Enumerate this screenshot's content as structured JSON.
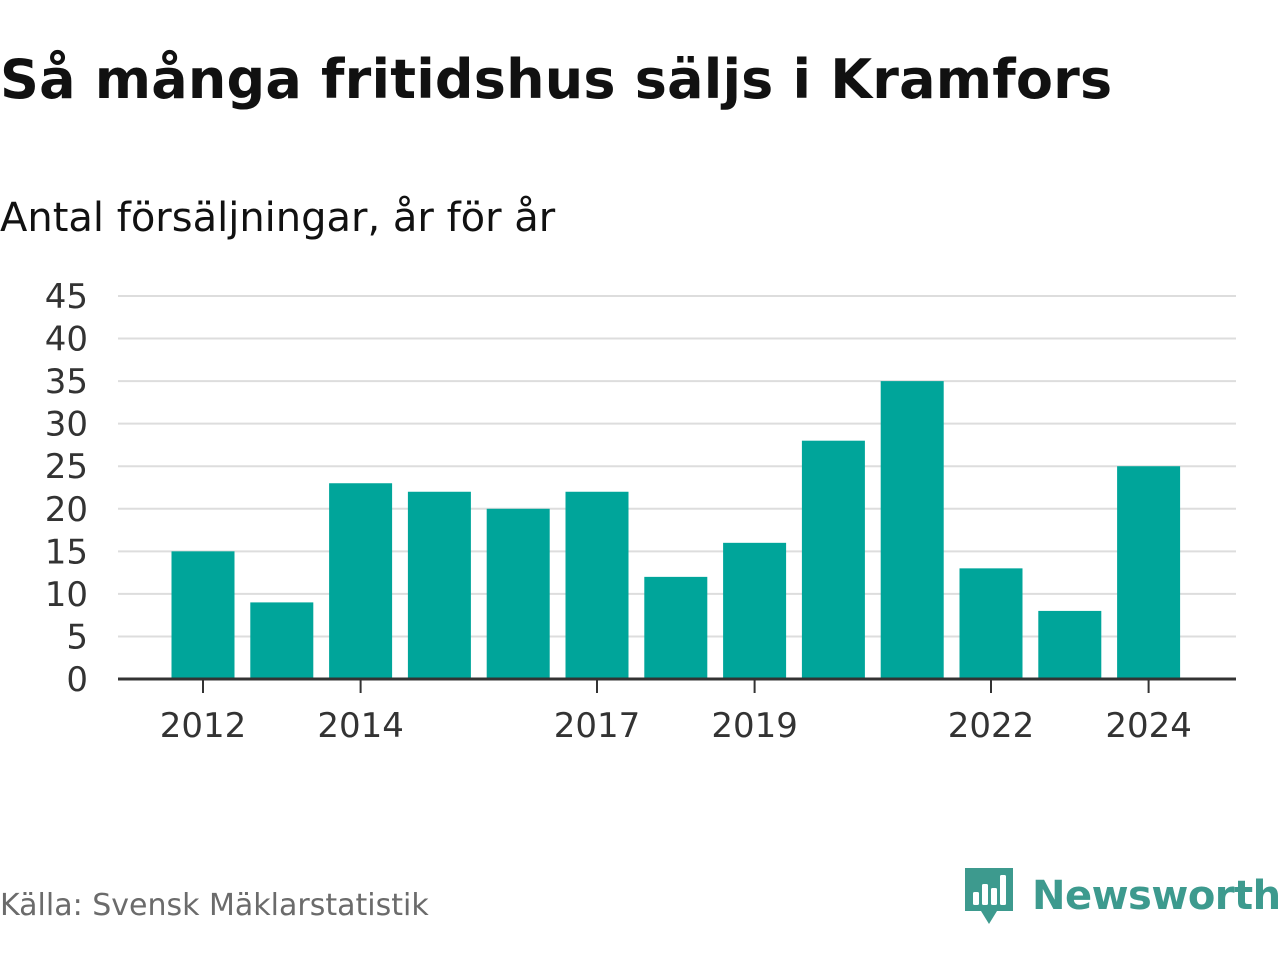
{
  "chart_data": {
    "type": "bar",
    "title": "Så många fritidshus säljs i Kramfors",
    "subtitle": "Antal försäljningar, år för år",
    "categories": [
      "2012",
      "2013",
      "2014",
      "2015",
      "2016",
      "2017",
      "2018",
      "2019",
      "2020",
      "2021",
      "2022",
      "2023",
      "2024"
    ],
    "values": [
      15,
      9,
      23,
      22,
      20,
      22,
      12,
      16,
      28,
      35,
      13,
      8,
      25
    ],
    "x_tick_labels": [
      "2012",
      "2014",
      "2017",
      "2019",
      "2022",
      "2024"
    ],
    "y_ticks": [
      "0",
      "5",
      "10",
      "15",
      "20",
      "25",
      "30",
      "35",
      "40",
      "45"
    ],
    "ylim": [
      0,
      45
    ],
    "xlabel": "",
    "ylabel": "",
    "grid": true,
    "legend": "none",
    "bar_color": "#00a59a",
    "source": "Källa: Svensk Mäklarstatistik"
  },
  "brand": {
    "name": "Newsworthy",
    "icon": "newsworthy-logo-icon",
    "color": "#3d9a8e"
  }
}
